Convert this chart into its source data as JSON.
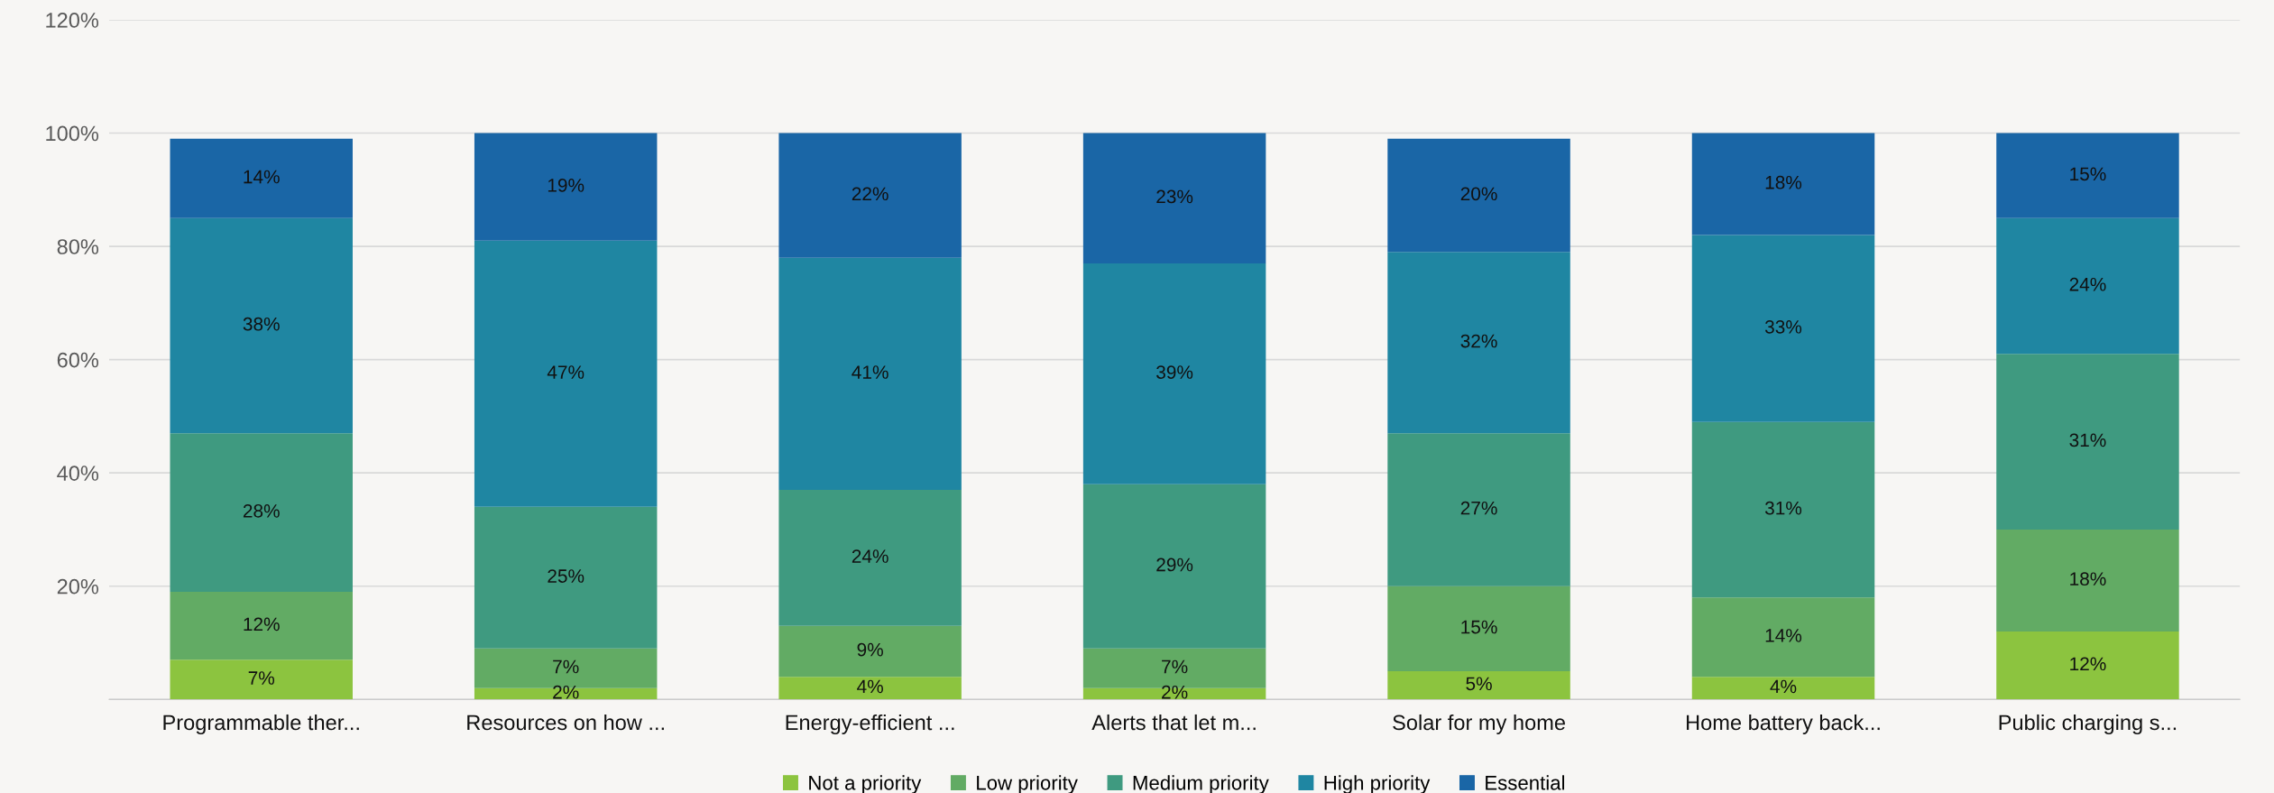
{
  "chart_data": {
    "type": "bar",
    "stacked": true,
    "categories": [
      "Programmable ther...",
      "Resources on how ...",
      "Energy-efficient ...",
      "Alerts that let m...",
      "Solar for my home",
      "Home battery back...",
      "Public charging s..."
    ],
    "series": [
      {
        "name": "Not a priority",
        "color": "#8cc43f",
        "values": [
          7,
          2,
          4,
          2,
          5,
          4,
          12
        ],
        "value_labels": [
          "7%",
          "2%",
          "4%",
          "2%",
          "5%",
          "4%",
          "12%"
        ]
      },
      {
        "name": "Low priority",
        "color": "#62ab64",
        "values": [
          12,
          7,
          9,
          7,
          15,
          14,
          18
        ],
        "value_labels": [
          "12%",
          "7%",
          "9%",
          "7%",
          "15%",
          "14%",
          "18%"
        ]
      },
      {
        "name": "Medium priority",
        "color": "#3f9a80",
        "values": [
          28,
          25,
          24,
          29,
          27,
          31,
          31
        ],
        "value_labels": [
          "28%",
          "25%",
          "24%",
          "29%",
          "27%",
          "31%",
          "31%"
        ]
      },
      {
        "name": "High priority",
        "color": "#1f86a2",
        "values": [
          38,
          47,
          41,
          39,
          32,
          33,
          24
        ],
        "value_labels": [
          "38%",
          "47%",
          "41%",
          "39%",
          "32%",
          "33%",
          "24%"
        ]
      },
      {
        "name": "Essential",
        "color": "#1a66a6",
        "values": [
          14,
          19,
          22,
          23,
          20,
          18,
          15
        ],
        "value_labels": [
          "14%",
          "19%",
          "22%",
          "23%",
          "20%",
          "18%",
          "15%"
        ]
      }
    ],
    "ylim": [
      0,
      120
    ],
    "yticks": [
      {
        "value": 0,
        "label": null
      },
      {
        "value": 20,
        "label": "20%"
      },
      {
        "value": 40,
        "label": "40%"
      },
      {
        "value": 60,
        "label": "60%"
      },
      {
        "value": 80,
        "label": "80%"
      },
      {
        "value": 100,
        "label": "100%"
      },
      {
        "value": 120,
        "label": "120%"
      }
    ],
    "grid": "y",
    "legend": "bottom"
  }
}
